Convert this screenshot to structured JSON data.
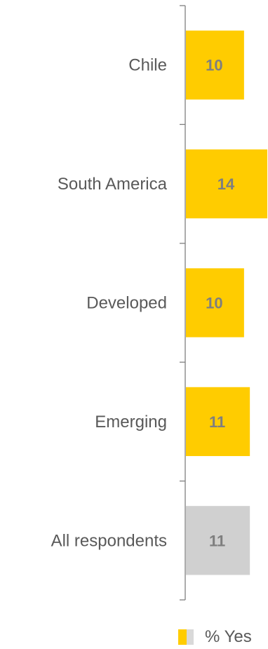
{
  "chart_data": {
    "type": "bar",
    "orientation": "horizontal",
    "categories": [
      "Chile",
      "South America",
      "Developed",
      "Emerging",
      "All respondents"
    ],
    "series": [
      {
        "name": "% Yes",
        "values": [
          10,
          14,
          10,
          11,
          11
        ]
      }
    ],
    "data_labels": [
      "10",
      "14",
      "10",
      "11",
      "11"
    ],
    "xlim": [
      0,
      14
    ],
    "grid": false,
    "legend_position": "bottom-right",
    "colors": {
      "bar": "#ffcc00",
      "bar_highlight": "#d0d0d0",
      "axis": "#7f7f7f",
      "legend_swatch_alt": "#d9d9d9"
    },
    "highlight_category": "All respondents"
  }
}
